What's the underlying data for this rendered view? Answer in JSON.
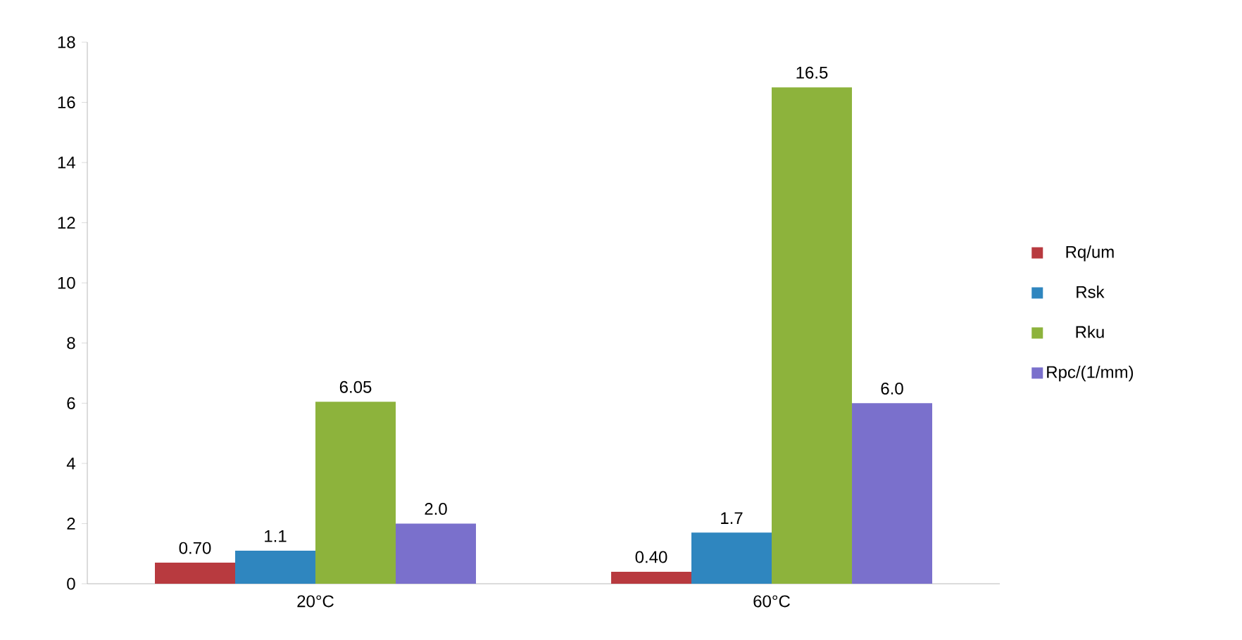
{
  "chart_data": {
    "type": "bar",
    "categories": [
      "20°C",
      "60°C"
    ],
    "series": [
      {
        "name": "Rq/um",
        "color": "#b83a3f",
        "values": [
          0.7,
          0.4
        ],
        "value_labels": [
          "0.70",
          "0.40"
        ]
      },
      {
        "name": "Rsk",
        "color": "#2f86bf",
        "values": [
          1.1,
          1.7
        ],
        "value_labels": [
          "1.1",
          "1.7"
        ]
      },
      {
        "name": "Rku",
        "color": "#8db33c",
        "values": [
          6.05,
          16.5
        ],
        "value_labels": [
          "6.05",
          "16.5"
        ]
      },
      {
        "name": "Rpc/(1/mm)",
        "color": "#7a70cc",
        "values": [
          2.0,
          6.0
        ],
        "value_labels": [
          "2.0",
          "6.0"
        ]
      }
    ],
    "ylim": [
      0,
      18
    ],
    "yticks": [
      0,
      2,
      4,
      6,
      8,
      10,
      12,
      14,
      16,
      18
    ],
    "legend": "right"
  }
}
